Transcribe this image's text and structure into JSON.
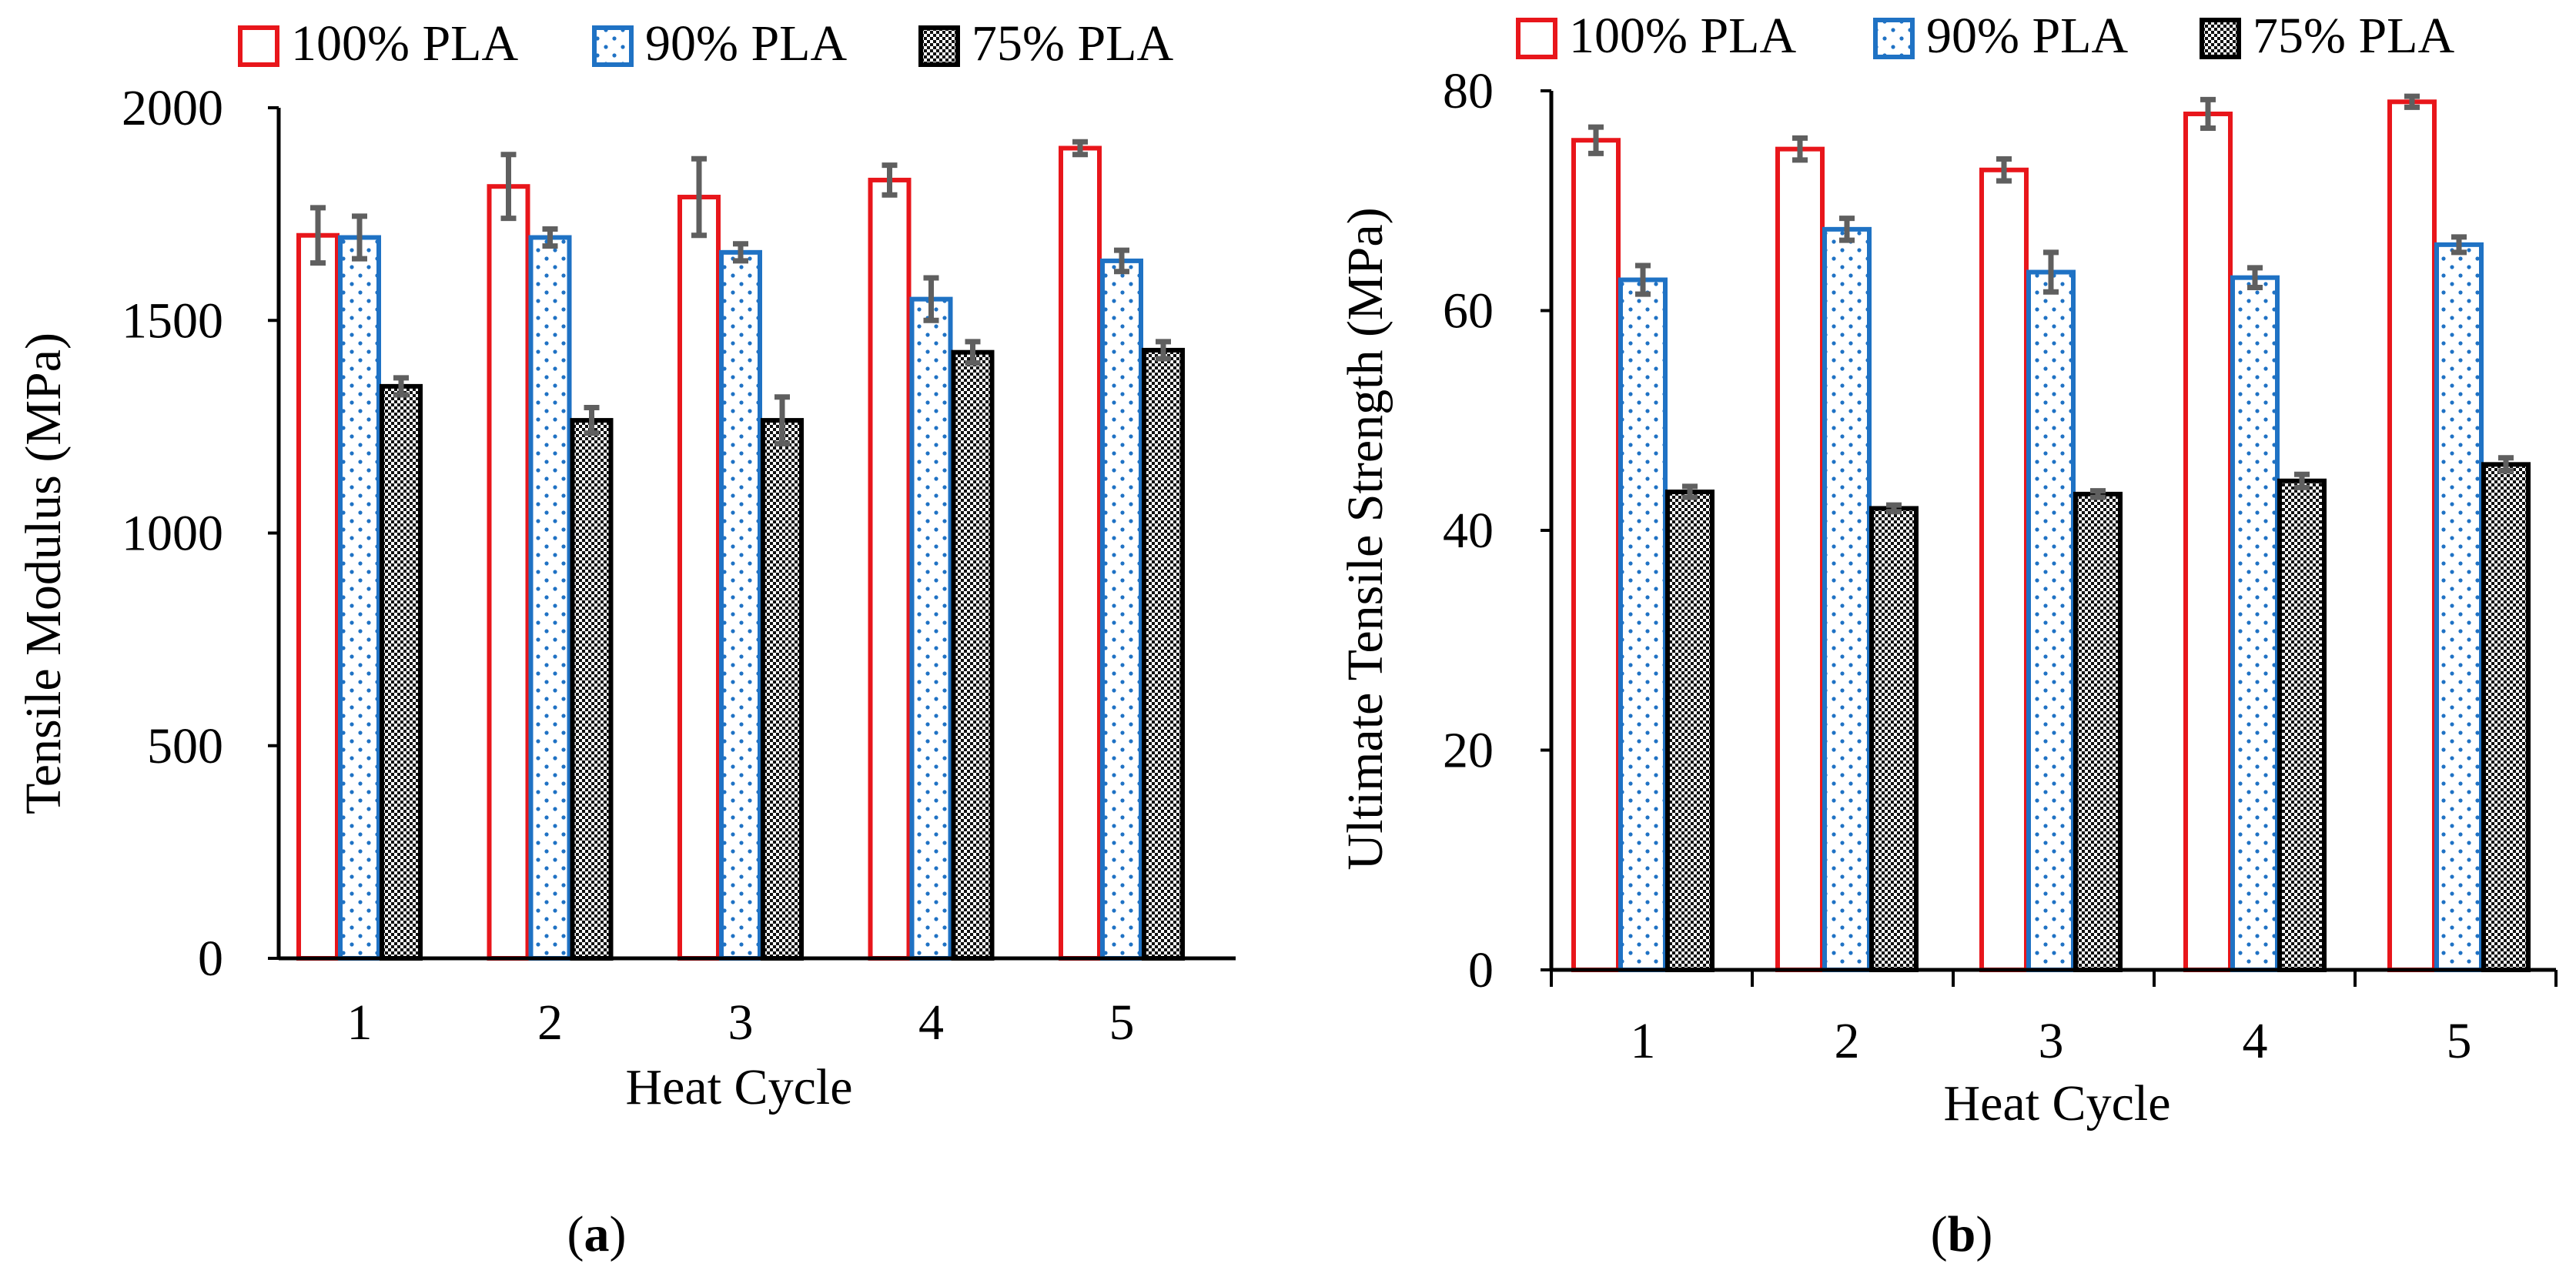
{
  "figure": {
    "colors": {
      "series_100": "#e8161b",
      "series_90": "#1f72c4",
      "series_75": "#000000",
      "error_bar": "#5f5f5f",
      "axis": "#000000"
    },
    "captions": {
      "a": "a",
      "b": "b"
    }
  },
  "chart_data": [
    {
      "type": "bar",
      "panel": "a",
      "title": "",
      "xlabel": "Heat Cycle",
      "ylabel": "Tensile Modulus (MPa)",
      "categories": [
        "1",
        "2",
        "3",
        "4",
        "5"
      ],
      "ylim": [
        0,
        2000
      ],
      "yticks": [
        0,
        500,
        1000,
        1500,
        2000
      ],
      "ytick_labels": [
        "0",
        "500",
        "1000",
        "1500",
        "2000"
      ],
      "grid": false,
      "legend_position": "top",
      "series": [
        {
          "name": "100% PLA",
          "pattern": "solid",
          "values": [
            1700,
            1815,
            1790,
            1830,
            1905
          ],
          "errors": [
            65,
            75,
            90,
            35,
            15
          ]
        },
        {
          "name": "90% PLA",
          "pattern": "dots",
          "values": [
            1695,
            1695,
            1660,
            1550,
            1640
          ],
          "errors": [
            50,
            20,
            20,
            50,
            25
          ]
        },
        {
          "name": "75% PLA",
          "pattern": "dense",
          "values": [
            1345,
            1265,
            1265,
            1425,
            1430
          ],
          "errors": [
            20,
            30,
            55,
            25,
            20
          ]
        }
      ]
    },
    {
      "type": "bar",
      "panel": "b",
      "title": "",
      "xlabel": "Heat Cycle",
      "ylabel": "Ultimate Tensile Strength (MPa)",
      "categories": [
        "1",
        "2",
        "3",
        "4",
        "5"
      ],
      "ylim": [
        0,
        80
      ],
      "yticks": [
        0,
        20,
        40,
        60,
        80
      ],
      "ytick_labels": [
        "0",
        "20",
        "40",
        "60",
        "80"
      ],
      "grid": false,
      "legend_position": "top",
      "series": [
        {
          "name": "100% PLA",
          "pattern": "solid",
          "values": [
            75.5,
            74.7,
            72.8,
            77.9,
            79.0
          ],
          "errors": [
            1.2,
            1.0,
            1.0,
            1.3,
            0.5
          ]
        },
        {
          "name": "90% PLA",
          "pattern": "dots",
          "values": [
            62.8,
            67.4,
            63.5,
            63.0,
            66.0
          ],
          "errors": [
            1.3,
            1.0,
            1.8,
            0.9,
            0.7
          ]
        },
        {
          "name": "75% PLA",
          "pattern": "dense",
          "values": [
            43.5,
            42.0,
            43.3,
            44.5,
            46.0
          ],
          "errors": [
            0.5,
            0.3,
            0.3,
            0.6,
            0.6
          ]
        }
      ]
    }
  ]
}
